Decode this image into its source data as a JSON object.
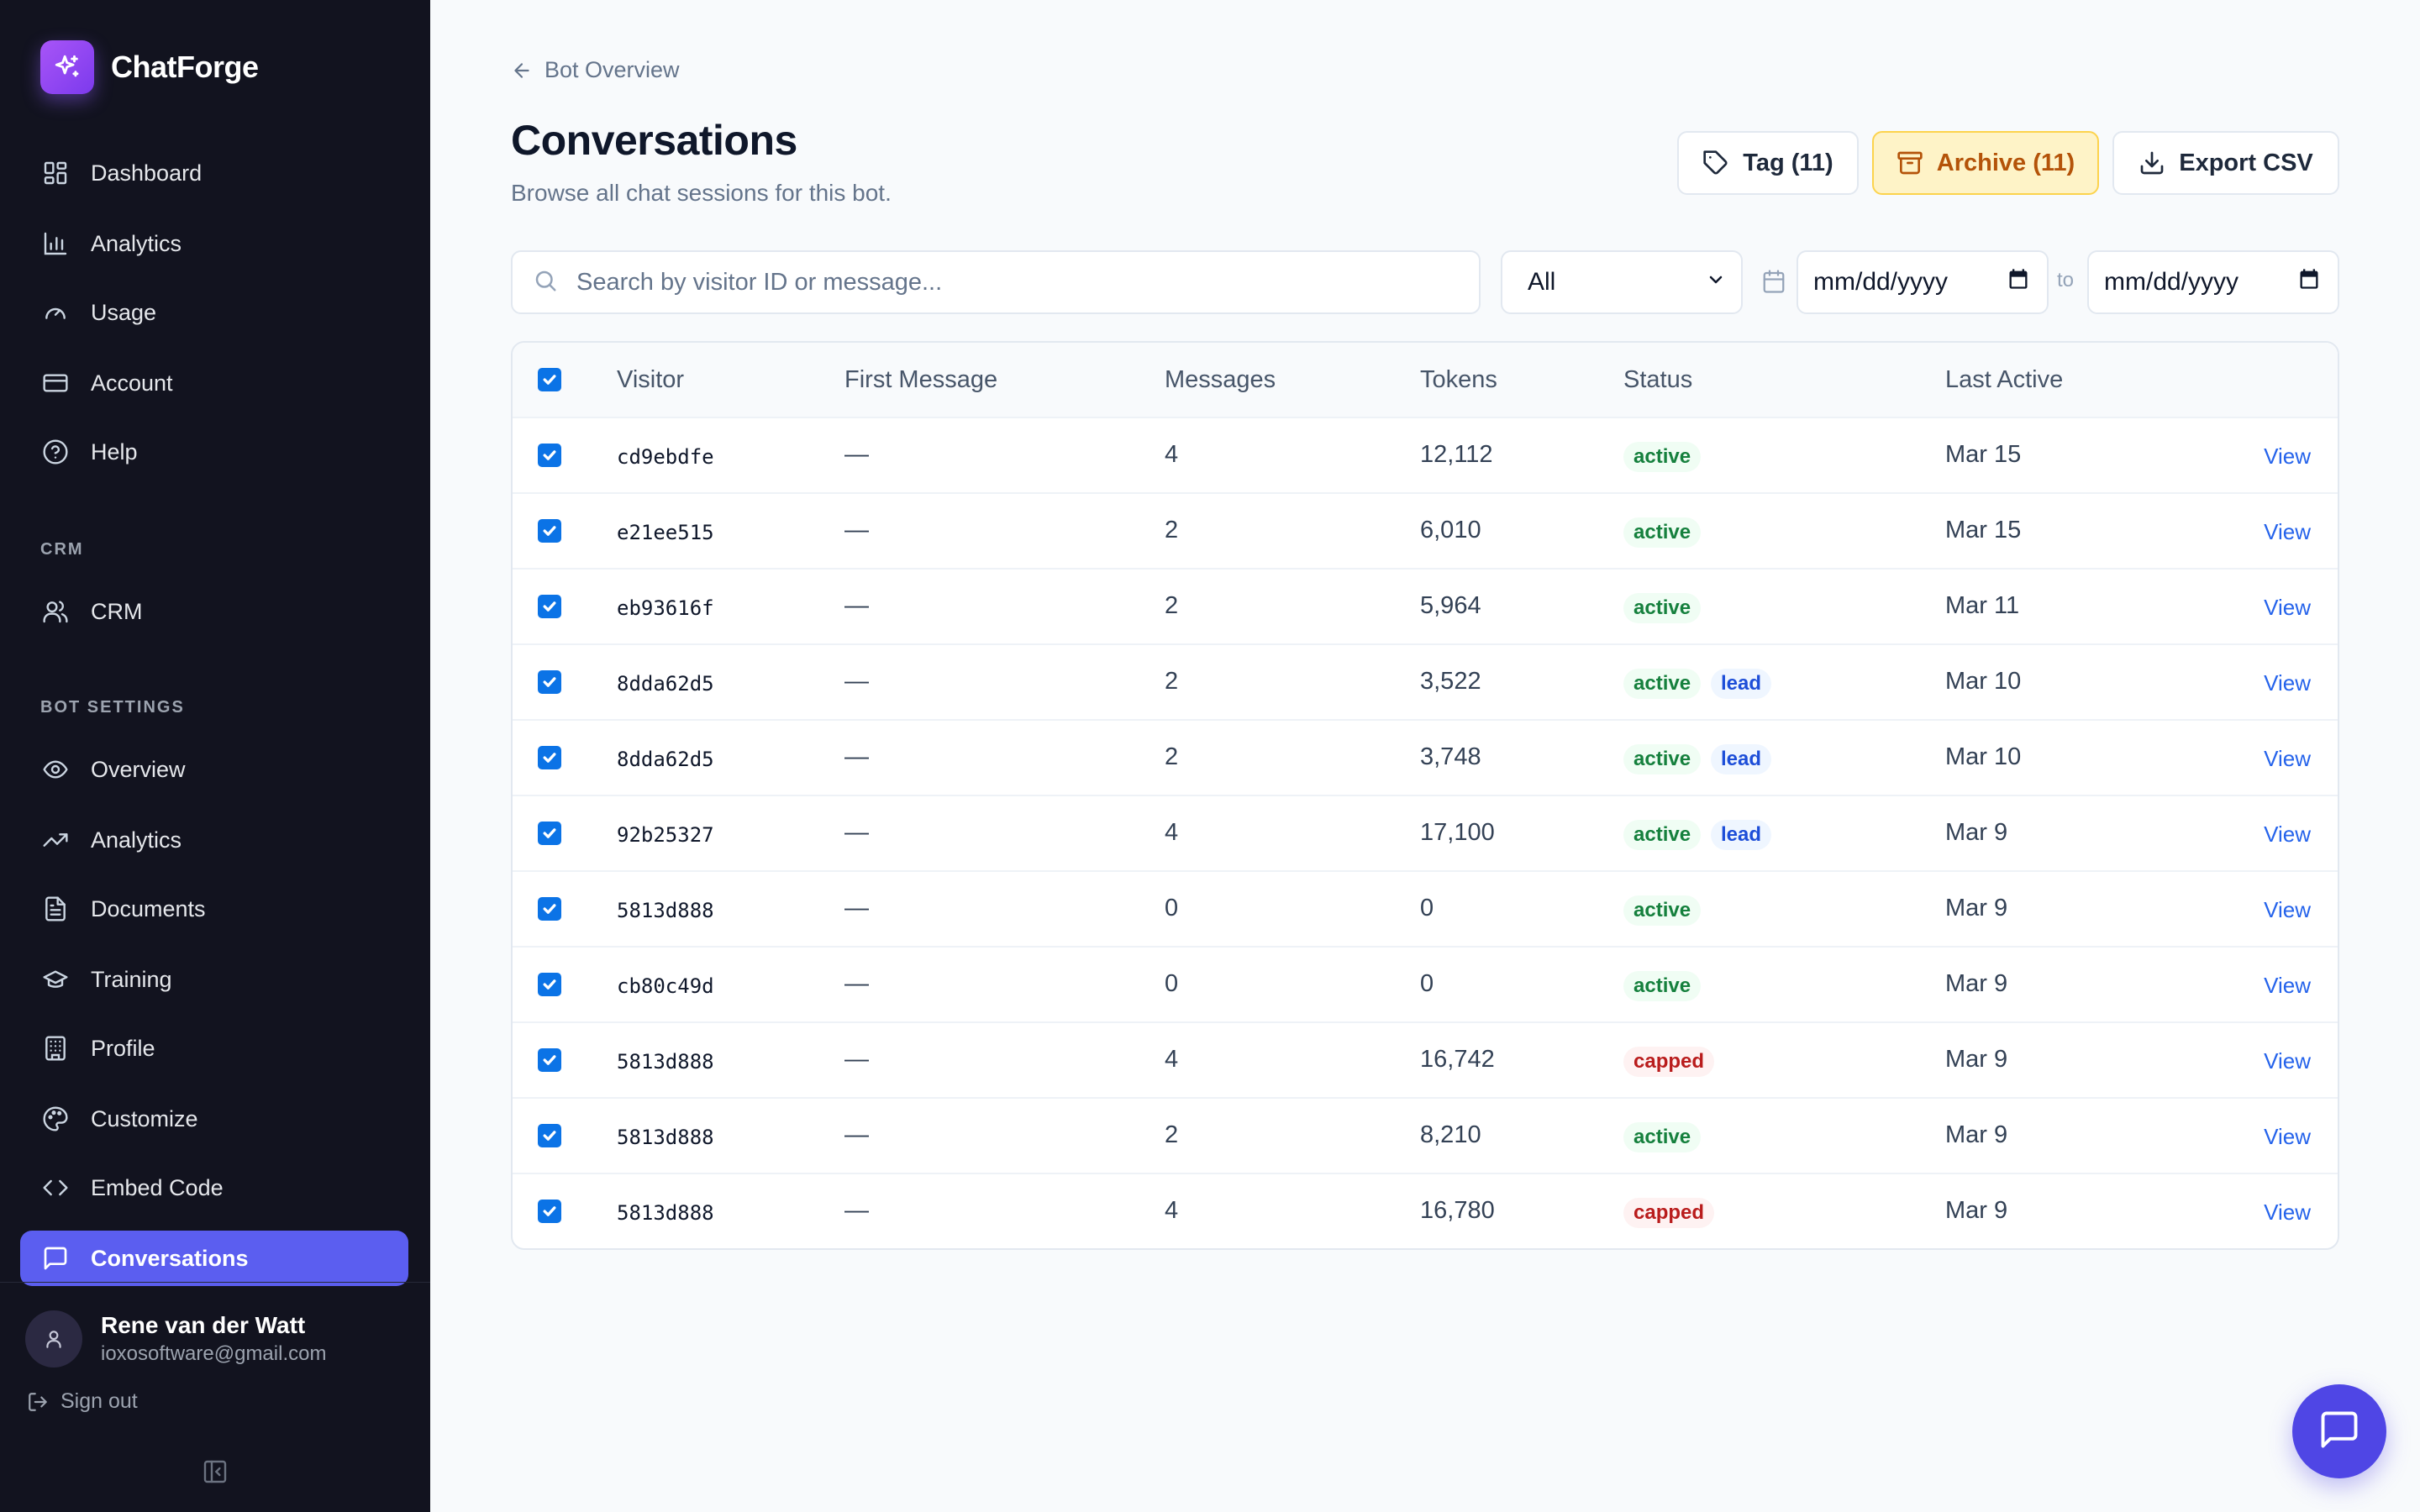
{
  "brand": {
    "name": "ChatForge",
    "logo_icon": "sparkles-icon",
    "accent": "#8b5cf6"
  },
  "sidebar": {
    "main_items": [
      {
        "label": "Dashboard",
        "icon": "dashboard-grid-icon"
      },
      {
        "label": "Analytics",
        "icon": "bar-chart-icon"
      },
      {
        "label": "Usage",
        "icon": "gauge-icon"
      },
      {
        "label": "Account",
        "icon": "credit-card-icon"
      },
      {
        "label": "Help",
        "icon": "help-circle-icon"
      }
    ],
    "crm_section": "CRM",
    "crm_items": [
      {
        "label": "CRM",
        "icon": "users-icon"
      }
    ],
    "bot_section": "BOT SETTINGS",
    "bot_items": [
      {
        "label": "Overview",
        "icon": "eye-icon"
      },
      {
        "label": "Analytics",
        "icon": "trending-up-icon"
      },
      {
        "label": "Documents",
        "icon": "file-text-icon"
      },
      {
        "label": "Training",
        "icon": "graduation-cap-icon"
      },
      {
        "label": "Profile",
        "icon": "building-icon"
      },
      {
        "label": "Customize",
        "icon": "palette-icon"
      },
      {
        "label": "Embed Code",
        "icon": "code-icon"
      },
      {
        "label": "Conversations",
        "icon": "message-square-icon",
        "active": true
      }
    ],
    "active_color": "#5b5ef0",
    "user": {
      "name": "Rene van der Watt",
      "email": "ioxosoftware@gmail.com"
    },
    "signout": "Sign out"
  },
  "header": {
    "breadcrumb": "Bot Overview",
    "title": "Conversations",
    "subtitle": "Browse all chat sessions for this bot.",
    "tag_button": "Tag (11)",
    "archive_button": "Archive (11)",
    "export_button": "Export CSV"
  },
  "filters": {
    "search_placeholder": "Search by visitor ID or message...",
    "status_value": "All",
    "date_from": "mm/dd/yyyy",
    "date_sep": "to",
    "date_to": "mm/dd/yyyy"
  },
  "table": {
    "columns": [
      "Visitor",
      "First Message",
      "Messages",
      "Tokens",
      "Status",
      "Last Active"
    ],
    "view_label": "View",
    "rows": [
      {
        "visitor": "cd9ebdfe",
        "first_message": "—",
        "messages": "4",
        "tokens": "12,112",
        "status": "active",
        "lead": null,
        "last_active": "Mar 15"
      },
      {
        "visitor": "e21ee515",
        "first_message": "—",
        "messages": "2",
        "tokens": "6,010",
        "status": "active",
        "lead": null,
        "last_active": "Mar 15"
      },
      {
        "visitor": "eb93616f",
        "first_message": "—",
        "messages": "2",
        "tokens": "5,964",
        "status": "active",
        "lead": null,
        "last_active": "Mar 11"
      },
      {
        "visitor": "8dda62d5",
        "first_message": "—",
        "messages": "2",
        "tokens": "3,522",
        "status": "active",
        "lead": "lead",
        "last_active": "Mar 10"
      },
      {
        "visitor": "8dda62d5",
        "first_message": "—",
        "messages": "2",
        "tokens": "3,748",
        "status": "active",
        "lead": "lead",
        "last_active": "Mar 10"
      },
      {
        "visitor": "92b25327",
        "first_message": "—",
        "messages": "4",
        "tokens": "17,100",
        "status": "active",
        "lead": "lead",
        "last_active": "Mar 9"
      },
      {
        "visitor": "5813d888",
        "first_message": "—",
        "messages": "0",
        "tokens": "0",
        "status": "active",
        "lead": null,
        "last_active": "Mar 9"
      },
      {
        "visitor": "cb80c49d",
        "first_message": "—",
        "messages": "0",
        "tokens": "0",
        "status": "active",
        "lead": null,
        "last_active": "Mar 9"
      },
      {
        "visitor": "5813d888",
        "first_message": "—",
        "messages": "4",
        "tokens": "16,742",
        "status": "capped",
        "lead": null,
        "last_active": "Mar 9"
      },
      {
        "visitor": "5813d888",
        "first_message": "—",
        "messages": "2",
        "tokens": "8,210",
        "status": "active",
        "lead": null,
        "last_active": "Mar 9"
      },
      {
        "visitor": "5813d888",
        "first_message": "—",
        "messages": "4",
        "tokens": "16,780",
        "status": "capped",
        "lead": null,
        "last_active": "Mar 9"
      }
    ]
  },
  "chat_widget": {
    "icon": "message-square-icon",
    "color": "#4f46e5"
  }
}
